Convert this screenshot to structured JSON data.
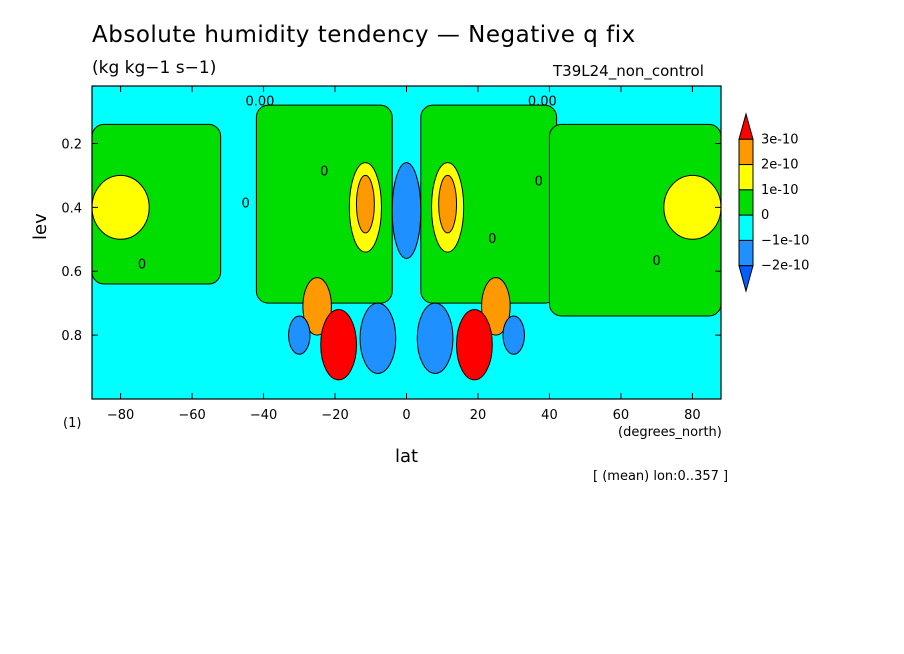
{
  "figure": {
    "title": "Absolute humidity tendency — Negative q fix",
    "units": "(kg kg−1 s−1)",
    "run_label": "T39L24_non_control",
    "page_label": "(1)",
    "mean_info": "[ (mean) lon:0..357 ]",
    "x_units": "(degrees_north)"
  },
  "chart_data": {
    "type": "heatmap",
    "title": "Absolute humidity tendency — Negative q fix",
    "xlabel": "lat",
    "ylabel": "lev",
    "xlim": [
      -88,
      88
    ],
    "ylim": [
      1.0,
      0.02
    ],
    "y_inverted": true,
    "x_ticks": [
      -80,
      -60,
      -40,
      -20,
      0,
      20,
      40,
      60,
      80
    ],
    "x_tick_labels": [
      "−80",
      "−60",
      "−40",
      "−20",
      "0",
      "20",
      "40",
      "60",
      "80"
    ],
    "y_ticks": [
      0.2,
      0.4,
      0.6,
      0.8
    ],
    "y_tick_labels": [
      "0.2",
      "0.4",
      "0.6",
      "0.8"
    ],
    "background_level": "-1e-10 to 0",
    "contour_labels": [
      {
        "text": "0.00",
        "lat": -41,
        "lev": 0.07
      },
      {
        "text": "0.00",
        "lat": 38,
        "lev": 0.07
      },
      {
        "text": "0",
        "lat": -23,
        "lev": 0.29
      },
      {
        "text": "0",
        "lat": -45,
        "lev": 0.39
      },
      {
        "text": "0",
        "lat": -74,
        "lev": 0.58
      },
      {
        "text": "0",
        "lat": 37,
        "lev": 0.32
      },
      {
        "text": "0",
        "lat": 24,
        "lev": 0.5
      },
      {
        "text": "0",
        "lat": 70,
        "lev": 0.57
      }
    ],
    "regions": [
      {
        "level": "0 to 1e-10",
        "lat_range": [
          -88,
          -52
        ],
        "lev_range": [
          0.14,
          0.64
        ]
      },
      {
        "level": "0 to 1e-10",
        "lat_range": [
          -42,
          -4
        ],
        "lev_range": [
          0.08,
          0.7
        ]
      },
      {
        "level": "0 to 1e-10",
        "lat_range": [
          4,
          42
        ],
        "lev_range": [
          0.08,
          0.7
        ]
      },
      {
        "level": "0 to 1e-10",
        "lat_range": [
          40,
          88
        ],
        "lev_range": [
          0.14,
          0.74
        ]
      },
      {
        "level": "1e-10 to 2e-10",
        "lat_range": [
          -88,
          -72
        ],
        "lev_range": [
          0.3,
          0.5
        ]
      },
      {
        "level": "1e-10 to 2e-10",
        "lat_range": [
          72,
          88
        ],
        "lev_range": [
          0.3,
          0.5
        ]
      },
      {
        "level": "1e-10 to 2e-10",
        "lat_range": [
          -16,
          -7
        ],
        "lev_range": [
          0.26,
          0.54
        ]
      },
      {
        "level": "1e-10 to 2e-10",
        "lat_range": [
          7,
          16
        ],
        "lev_range": [
          0.26,
          0.54
        ]
      },
      {
        "level": "2e-10 to 3e-10",
        "lat_range": [
          -14,
          -9
        ],
        "lev_range": [
          0.3,
          0.48
        ]
      },
      {
        "level": "2e-10 to 3e-10",
        "lat_range": [
          9,
          14
        ],
        "lev_range": [
          0.3,
          0.48
        ]
      },
      {
        "level": "2e-10 to 3e-10",
        "lat_range": [
          -29,
          -21
        ],
        "lev_range": [
          0.62,
          0.8
        ]
      },
      {
        "level": "2e-10 to 3e-10",
        "lat_range": [
          21,
          29
        ],
        "lev_range": [
          0.62,
          0.8
        ]
      },
      {
        "level": "> 3e-10",
        "lat_range": [
          -24,
          -14
        ],
        "lev_range": [
          0.72,
          0.94
        ]
      },
      {
        "level": "> 3e-10",
        "lat_range": [
          14,
          24
        ],
        "lev_range": [
          0.72,
          0.94
        ]
      },
      {
        "level": "-2e-10 to -1e-10",
        "lat_range": [
          -4,
          4
        ],
        "lev_range": [
          0.26,
          0.56
        ]
      },
      {
        "level": "-2e-10 to -1e-10",
        "lat_range": [
          -13,
          -3
        ],
        "lev_range": [
          0.7,
          0.92
        ]
      },
      {
        "level": "-2e-10 to -1e-10",
        "lat_range": [
          3,
          13
        ],
        "lev_range": [
          0.7,
          0.92
        ]
      },
      {
        "level": "-2e-10 to -1e-10",
        "lat_range": [
          -33,
          -27
        ],
        "lev_range": [
          0.74,
          0.86
        ]
      },
      {
        "level": "-2e-10 to -1e-10",
        "lat_range": [
          27,
          33
        ],
        "lev_range": [
          0.74,
          0.86
        ]
      }
    ],
    "levels": [
      {
        "label": "3e-10",
        "color": "#ff0000"
      },
      {
        "label": "2e-10",
        "color": "#ff9900"
      },
      {
        "label": "1e-10",
        "color": "#ffff00"
      },
      {
        "label": "0",
        "color": "#00dd00"
      },
      {
        "label": "−1e-10",
        "color": "#00ffff"
      },
      {
        "label": "−2e-10",
        "color": "#1e90ff"
      }
    ],
    "colorbar": {
      "labels": [
        "3e-10",
        "2e-10",
        "1e-10",
        "0",
        "−1e-10",
        "−2e-10"
      ],
      "colors": [
        "#ff0000",
        "#ff9900",
        "#ffff00",
        "#00dd00",
        "#00ffff",
        "#1e90ff",
        "#0060ff"
      ]
    }
  }
}
